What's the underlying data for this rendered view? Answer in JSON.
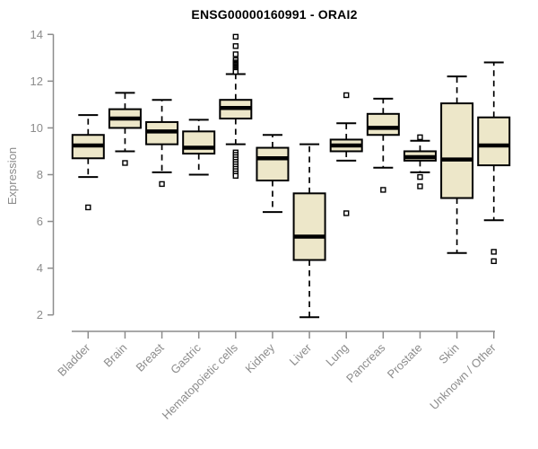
{
  "title": "ENSG00000160991 - ORAI2",
  "chart_data": {
    "type": "boxplot",
    "title": "ENSG00000160991 - ORAI2",
    "xlabel": "",
    "ylabel": "Expression",
    "ylim": [
      2,
      14
    ],
    "yticks": [
      2,
      4,
      6,
      8,
      10,
      12,
      14
    ],
    "grid": false,
    "legend": false,
    "colors": {
      "box_fill": "#EDE7C9",
      "box_border": "#000000",
      "median": "#000000",
      "whisker": "#000000",
      "outlier_stroke": "#000000",
      "axis": "#8C8C8C",
      "tick_label": "#8C8C8C",
      "title": "#000000",
      "background": "#FFFFFF"
    },
    "categories": [
      "Bladder",
      "Brain",
      "Breast",
      "Gastric",
      "Hematopoietic cells",
      "Kidney",
      "Liver",
      "Lung",
      "Pancreas",
      "Prostate",
      "Skin",
      "Unknown / Other"
    ],
    "series": [
      {
        "name": "Bladder",
        "whisker_low": 7.9,
        "q1": 8.7,
        "median": 9.25,
        "q3": 9.7,
        "whisker_high": 10.55,
        "outliers": [
          6.6
        ]
      },
      {
        "name": "Brain",
        "whisker_low": 9.0,
        "q1": 10.0,
        "median": 10.4,
        "q3": 10.8,
        "whisker_high": 11.5,
        "outliers": [
          8.5
        ]
      },
      {
        "name": "Breast",
        "whisker_low": 8.1,
        "q1": 9.3,
        "median": 9.85,
        "q3": 10.25,
        "whisker_high": 11.2,
        "outliers": [
          7.6
        ]
      },
      {
        "name": "Gastric",
        "whisker_low": 8.0,
        "q1": 8.9,
        "median": 9.15,
        "q3": 9.85,
        "whisker_high": 10.35,
        "outliers": []
      },
      {
        "name": "Hematopoietic cells",
        "whisker_low": 9.3,
        "q1": 10.4,
        "median": 10.85,
        "q3": 11.2,
        "whisker_high": 12.3,
        "outliers": [
          13.9,
          13.5,
          13.15,
          12.9,
          12.8,
          12.75,
          12.7,
          12.65,
          12.6,
          12.55,
          12.5,
          12.45,
          12.4,
          8.95,
          8.85,
          8.75,
          8.65,
          8.55,
          8.45,
          8.35,
          8.25,
          8.15,
          8.05,
          7.95
        ]
      },
      {
        "name": "Kidney",
        "whisker_low": 6.4,
        "q1": 7.75,
        "median": 8.7,
        "q3": 9.15,
        "whisker_high": 9.7,
        "outliers": []
      },
      {
        "name": "Liver",
        "whisker_low": 1.9,
        "q1": 4.35,
        "median": 5.35,
        "q3": 7.2,
        "whisker_high": 9.3,
        "outliers": []
      },
      {
        "name": "Lung",
        "whisker_low": 8.6,
        "q1": 9.0,
        "median": 9.25,
        "q3": 9.5,
        "whisker_high": 10.2,
        "outliers": [
          11.4,
          6.35
        ]
      },
      {
        "name": "Pancreas",
        "whisker_low": 8.3,
        "q1": 9.7,
        "median": 10.0,
        "q3": 10.6,
        "whisker_high": 11.25,
        "outliers": [
          7.35
        ]
      },
      {
        "name": "Prostate",
        "whisker_low": 8.1,
        "q1": 8.6,
        "median": 8.75,
        "q3": 9.0,
        "whisker_high": 9.45,
        "outliers": [
          9.6,
          7.9,
          7.5
        ]
      },
      {
        "name": "Skin",
        "whisker_low": 4.65,
        "q1": 7.0,
        "median": 8.65,
        "q3": 11.05,
        "whisker_high": 12.2,
        "outliers": []
      },
      {
        "name": "Unknown / Other",
        "whisker_low": 6.05,
        "q1": 8.4,
        "median": 9.25,
        "q3": 10.45,
        "whisker_high": 12.8,
        "outliers": [
          4.7,
          4.3
        ]
      }
    ]
  }
}
